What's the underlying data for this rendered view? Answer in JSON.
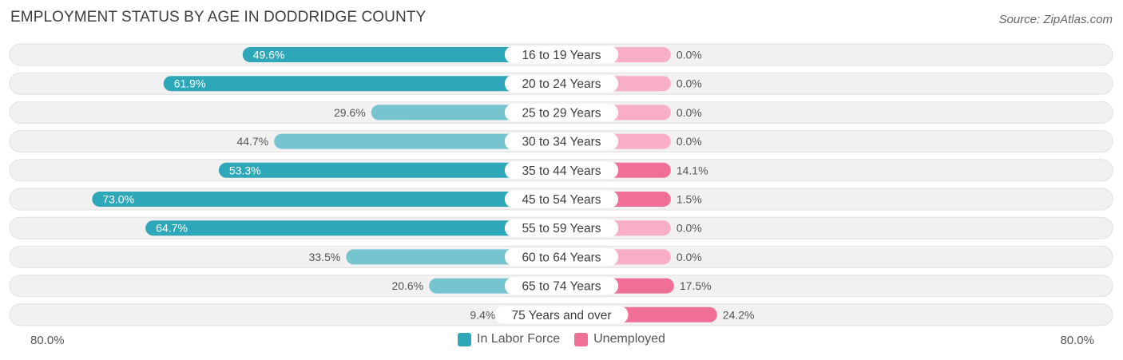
{
  "chart_data": {
    "type": "bar",
    "orientation": "horizontal-diverging",
    "title": "EMPLOYMENT STATUS BY AGE IN DODDRIDGE COUNTY",
    "source": "Source: ZipAtlas.com",
    "categories": [
      "16 to 19 Years",
      "20 to 24 Years",
      "25 to 29 Years",
      "30 to 34 Years",
      "35 to 44 Years",
      "45 to 54 Years",
      "55 to 59 Years",
      "60 to 64 Years",
      "65 to 74 Years",
      "75 Years and over"
    ],
    "series": [
      {
        "name": "In Labor Force",
        "values": [
          49.6,
          61.9,
          29.6,
          44.7,
          53.3,
          73.0,
          64.7,
          33.5,
          20.6,
          9.4
        ],
        "labels": [
          "49.6%",
          "61.9%",
          "29.6%",
          "44.7%",
          "53.3%",
          "73.0%",
          "64.7%",
          "33.5%",
          "20.6%",
          "9.4%"
        ]
      },
      {
        "name": "Unemployed",
        "values": [
          0.0,
          0.0,
          0.0,
          0.0,
          14.1,
          1.5,
          0.0,
          0.0,
          17.5,
          24.2
        ],
        "labels": [
          "0.0%",
          "0.0%",
          "0.0%",
          "0.0%",
          "14.1%",
          "1.5%",
          "0.0%",
          "0.0%",
          "17.5%",
          "24.2%"
        ]
      }
    ],
    "axis_max": 80.0,
    "axis_left_label": "80.0%",
    "axis_right_label": "80.0%",
    "legend_position": "bottom-center"
  },
  "colors": {
    "labor_dark": "#2ea7b9",
    "labor_light": "#76c4cf",
    "unemp_dark": "#f06f97",
    "unemp_light": "#f8aec6",
    "row_bg": "#f1f1f1",
    "row_border": "#e1e1e1"
  }
}
